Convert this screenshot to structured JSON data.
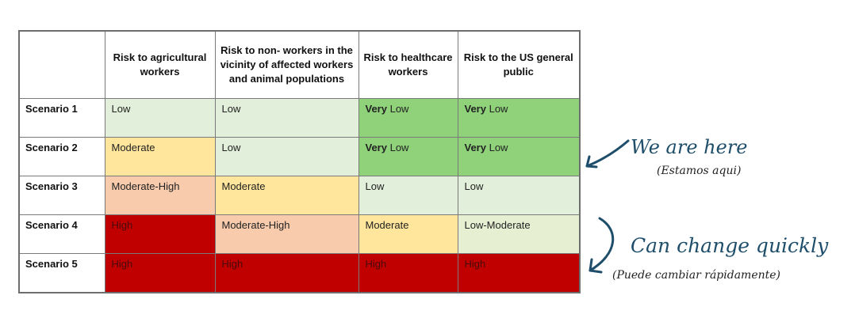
{
  "table": {
    "headers": [
      "",
      "Risk to agricultural workers",
      "Risk to non- workers in the vicinity of affected workers and animal populations",
      "Risk to healthcare workers",
      "Risk to the US general public"
    ],
    "rows": [
      {
        "label": "Scenario 1",
        "cells": [
          {
            "bold": "",
            "text": "Low",
            "color": "#e2efda"
          },
          {
            "bold": "",
            "text": "Low",
            "color": "#e2efda"
          },
          {
            "bold": "Very",
            "text": " Low",
            "color": "#8fd27a"
          },
          {
            "bold": "Very",
            "text": " Low",
            "color": "#8fd27a"
          }
        ]
      },
      {
        "label": "Scenario 2",
        "cells": [
          {
            "bold": "",
            "text": "Moderate",
            "color": "#ffe69c"
          },
          {
            "bold": "",
            "text": "Low",
            "color": "#e2efda"
          },
          {
            "bold": "Very",
            "text": " Low",
            "color": "#8fd27a"
          },
          {
            "bold": "Very",
            "text": " Low",
            "color": "#8fd27a"
          }
        ]
      },
      {
        "label": "Scenario 3",
        "cells": [
          {
            "bold": "",
            "text": "Moderate-High",
            "color": "#f7cbac"
          },
          {
            "bold": "",
            "text": "Moderate",
            "color": "#ffe69c"
          },
          {
            "bold": "",
            "text": "Low",
            "color": "#e2efda"
          },
          {
            "bold": "",
            "text": "Low",
            "color": "#e2efda"
          }
        ]
      },
      {
        "label": "Scenario 4",
        "cells": [
          {
            "bold": "",
            "text": "High",
            "color": "#c00000"
          },
          {
            "bold": "",
            "text": "Moderate-High",
            "color": "#f7cbac"
          },
          {
            "bold": "",
            "text": "Moderate",
            "color": "#ffe69c"
          },
          {
            "bold": "",
            "text": "Low-Moderate",
            "color": "#e6efd2"
          }
        ]
      },
      {
        "label": "Scenario 5",
        "cells": [
          {
            "bold": "",
            "text": "High",
            "color": "#c00000"
          },
          {
            "bold": "",
            "text": "High",
            "color": "#c00000"
          },
          {
            "bold": "",
            "text": "High",
            "color": "#c00000"
          },
          {
            "bold": "",
            "text": "High",
            "color": "#c00000"
          }
        ]
      }
    ]
  },
  "annotations": {
    "here_en": "We are here",
    "here_es": "(Estamos aqui)",
    "change_en": "Can change quickly",
    "change_es": "(Puede cambiar rápidamente)",
    "ink_color": "#1f4e6b"
  }
}
